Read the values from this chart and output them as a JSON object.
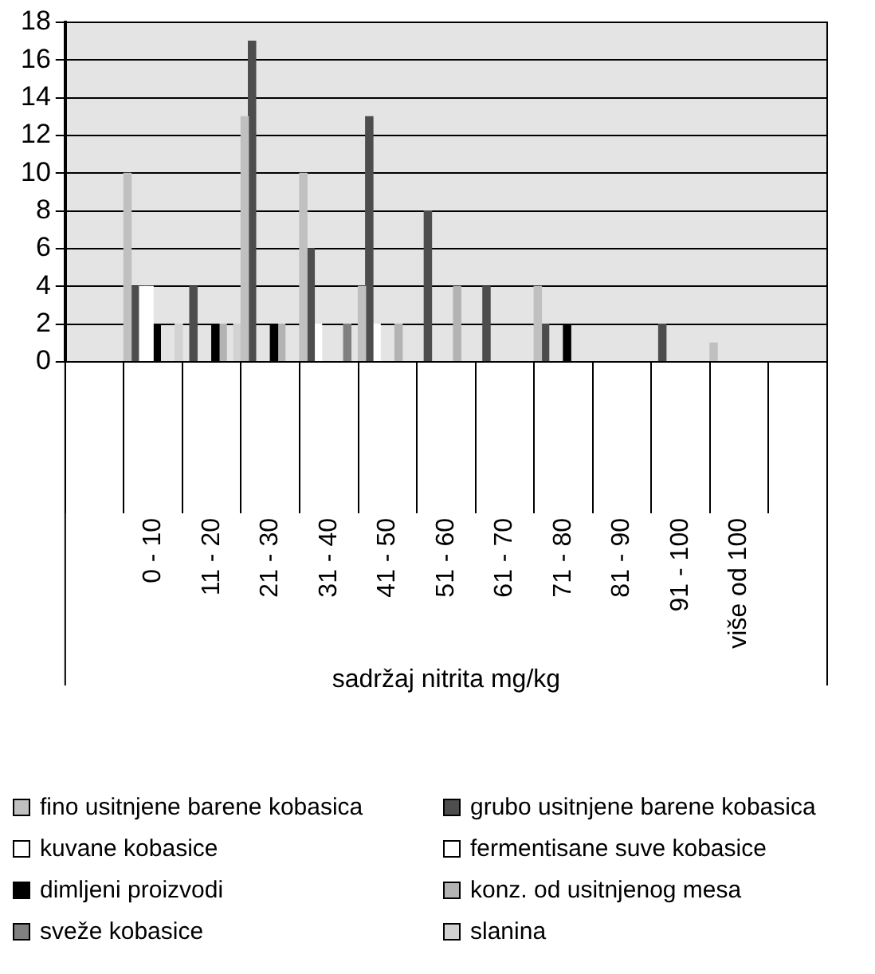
{
  "chart_data": {
    "type": "bar",
    "xlabel": "sadržaj nitrita mg/kg",
    "categories": [
      null,
      "0 - 10",
      "11 - 20",
      "21 - 30",
      "31 - 40",
      "41 - 50",
      "51 - 60",
      "61 - 70",
      "71 - 80",
      "81 - 90",
      "91 - 100",
      "više od 100",
      null
    ],
    "series": [
      {
        "name": "fino usitnjene barene kobasica",
        "color": "#c0c0c0",
        "values": [
          0,
          10,
          0,
          13,
          10,
          4,
          0,
          0,
          4,
          0,
          0,
          1,
          0
        ]
      },
      {
        "name": "grubo usitnjene barene kobasica",
        "color": "#4d4d4d",
        "values": [
          0,
          4,
          4,
          17,
          6,
          13,
          8,
          4,
          2,
          0,
          2,
          0,
          0
        ]
      },
      {
        "name": "kuvane kobasice",
        "color": "#ffffff",
        "values": [
          0,
          4,
          0,
          0,
          2,
          2,
          0,
          0,
          0,
          0,
          0,
          0,
          0
        ]
      },
      {
        "name": "fermentisane suve kobasice",
        "color": "#ffffff",
        "values": [
          0,
          4,
          0,
          0,
          0,
          0,
          0,
          0,
          0,
          0,
          0,
          0,
          0
        ]
      },
      {
        "name": "dimljeni proizvodi",
        "color": "#000000",
        "values": [
          0,
          2,
          2,
          2,
          0,
          0,
          0,
          0,
          2,
          0,
          0,
          0,
          0
        ]
      },
      {
        "name": "konz. od usitnjenog mesa",
        "color": "#b3b3b3",
        "values": [
          0,
          0,
          2,
          2,
          0,
          2,
          4,
          0,
          0,
          0,
          0,
          0,
          0
        ]
      },
      {
        "name": "sveže kobasice",
        "color": "#808080",
        "values": [
          0,
          0,
          0,
          0,
          2,
          0,
          0,
          0,
          0,
          0,
          0,
          0,
          0
        ]
      },
      {
        "name": "slanina",
        "color": "#d2d2d2",
        "values": [
          0,
          2,
          2,
          0,
          0,
          0,
          0,
          0,
          0,
          0,
          0,
          0,
          0
        ]
      }
    ],
    "ylim": [
      0,
      18
    ],
    "yticks": [
      0,
      2,
      4,
      6,
      8,
      10,
      12,
      14,
      16,
      18
    ],
    "grid": "y",
    "legend": "bottom"
  }
}
